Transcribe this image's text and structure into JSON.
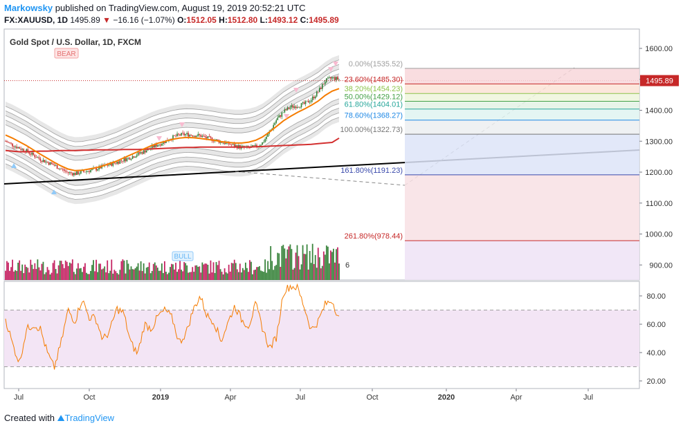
{
  "header": {
    "author": "Markowsky",
    "published_text": "published on TradingView.com, August 19, 2019 20:52:21 UTC",
    "symbol": "FX:XAUUSD, 1D",
    "last": "1495.89",
    "change": "−16.16 (−1.07%)",
    "o_label": "O:",
    "o_value": "1512.05",
    "h_label": "H:",
    "h_value": "1512.80",
    "l_label": "L:",
    "l_value": "1493.12",
    "c_label": "C:",
    "c_value": "1495.89"
  },
  "footer": {
    "created_with": "Created with",
    "brand": "TradingView"
  },
  "colors": {
    "up": "#2e7d32",
    "down": "#c62828",
    "ema": "#f57c00",
    "mid": "#d32f2f",
    "trend": "#000000",
    "rsi": "#f57c00",
    "rsi_band": "#f3e5f5"
  },
  "chart_data": {
    "type": "line",
    "title": "Gold Spot / U.S. Dollar, 1D, FXCM",
    "price_axis": {
      "ticks": [
        "1600.00",
        "1500.00",
        "1400.00",
        "1300.00",
        "1200.00",
        "1100.00",
        "1000.00",
        "900.00"
      ],
      "tick_values": [
        1600,
        1500,
        1400,
        1300,
        1200,
        1100,
        1000,
        900
      ],
      "current_price_label": "1495.89",
      "current_price": 1495.89
    },
    "rsi_axis": {
      "ticks": [
        "80.00",
        "60.00",
        "40.00",
        "20.00"
      ],
      "tick_values": [
        80,
        60,
        40,
        20
      ],
      "upper_band": 70,
      "lower_band": 30
    },
    "time_axis": {
      "ticks": [
        "Jul",
        "Oct",
        "2019",
        "Apr",
        "Jul",
        "Oct",
        "2020",
        "Apr",
        "Jul"
      ],
      "bold": [
        false,
        false,
        true,
        false,
        false,
        false,
        true,
        false,
        false
      ]
    },
    "fib_levels": [
      {
        "label": "0.00%(1535.52)",
        "value": 1535.52,
        "color": "#9e9e9e",
        "fill": "#f8d7da"
      },
      {
        "label": "23.60%(1485.30)",
        "value": 1485.3,
        "color": "#c62828",
        "fill": "#fbe3d6"
      },
      {
        "label": "38.20%(1454.23)",
        "value": 1454.23,
        "color": "#8bc34a",
        "fill": "#eef6dc"
      },
      {
        "label": "50.00%(1429.12)",
        "value": 1429.12,
        "color": "#43a047",
        "fill": "#e3f2e5"
      },
      {
        "label": "61.80%(1404.01)",
        "value": 1404.01,
        "color": "#26a69a",
        "fill": "#dff3f1"
      },
      {
        "label": "78.60%(1368.27)",
        "value": 1368.27,
        "color": "#1e88e5",
        "fill": "#eceff1"
      },
      {
        "label": "100.00%(1322.73)",
        "value": 1322.73,
        "color": "#757575",
        "fill": "#dde4f8"
      },
      {
        "label": "161.80%(1191.23)",
        "value": 1191.23,
        "color": "#3949ab",
        "fill": "#f8e1e4"
      },
      {
        "label": "261.80%(978.44)",
        "value": 978.44,
        "color": "#c62828",
        "fill": "#efe3f6"
      }
    ],
    "annotations": {
      "bear_label": "BEAR",
      "bull_label": "BULL",
      "volume_tag": "6"
    },
    "series": [
      {
        "name": "",
        "approx_values": [
          1300,
          1288,
          1278,
          1268,
          1255,
          1242,
          1232,
          1222,
          1210,
          1198,
          1195,
          1200,
          1205,
          1210,
          1218,
          1225,
          1232,
          1240,
          1248,
          1258,
          1268,
          1280,
          1290,
          1300,
          1312,
          1320,
          1322,
          1320,
          1318,
          1310,
          1305,
          1298,
          1292,
          1285,
          1280,
          1278,
          1282,
          1295,
          1330,
          1370,
          1395,
          1410,
          1415,
          1420,
          1435,
          1460,
          1495,
          1505,
          1500
        ]
      },
      {
        "name": "",
        "approx_values": [
          1320,
          1310,
          1298,
          1286,
          1272,
          1258,
          1245,
          1232,
          1220,
          1210,
          1205,
          1206,
          1210,
          1214,
          1220,
          1228,
          1236,
          1246,
          1256,
          1266,
          1276,
          1286,
          1294,
          1300,
          1306,
          1310,
          1312,
          1311,
          1309,
          1306,
          1303,
          1299,
          1296,
          1294,
          1294,
          1297,
          1303,
          1314,
          1330,
          1348,
          1366,
          1380,
          1393,
          1404,
          1416,
          1430,
          1448,
          1462,
          1470
        ]
      },
      {
        "name": "",
        "approx_values": [
          64,
          46,
          33,
          56,
          60,
          57,
          40,
          29,
          47,
          70,
          62,
          78,
          65,
          64,
          49,
          55,
          71,
          68,
          47,
          39,
          60,
          57,
          66,
          70,
          64,
          47,
          54,
          70,
          80,
          66,
          62,
          48,
          61,
          73,
          63,
          59,
          74,
          57,
          43,
          51,
          83,
          87,
          86,
          72,
          56,
          62,
          74,
          77,
          64
        ]
      }
    ]
  }
}
